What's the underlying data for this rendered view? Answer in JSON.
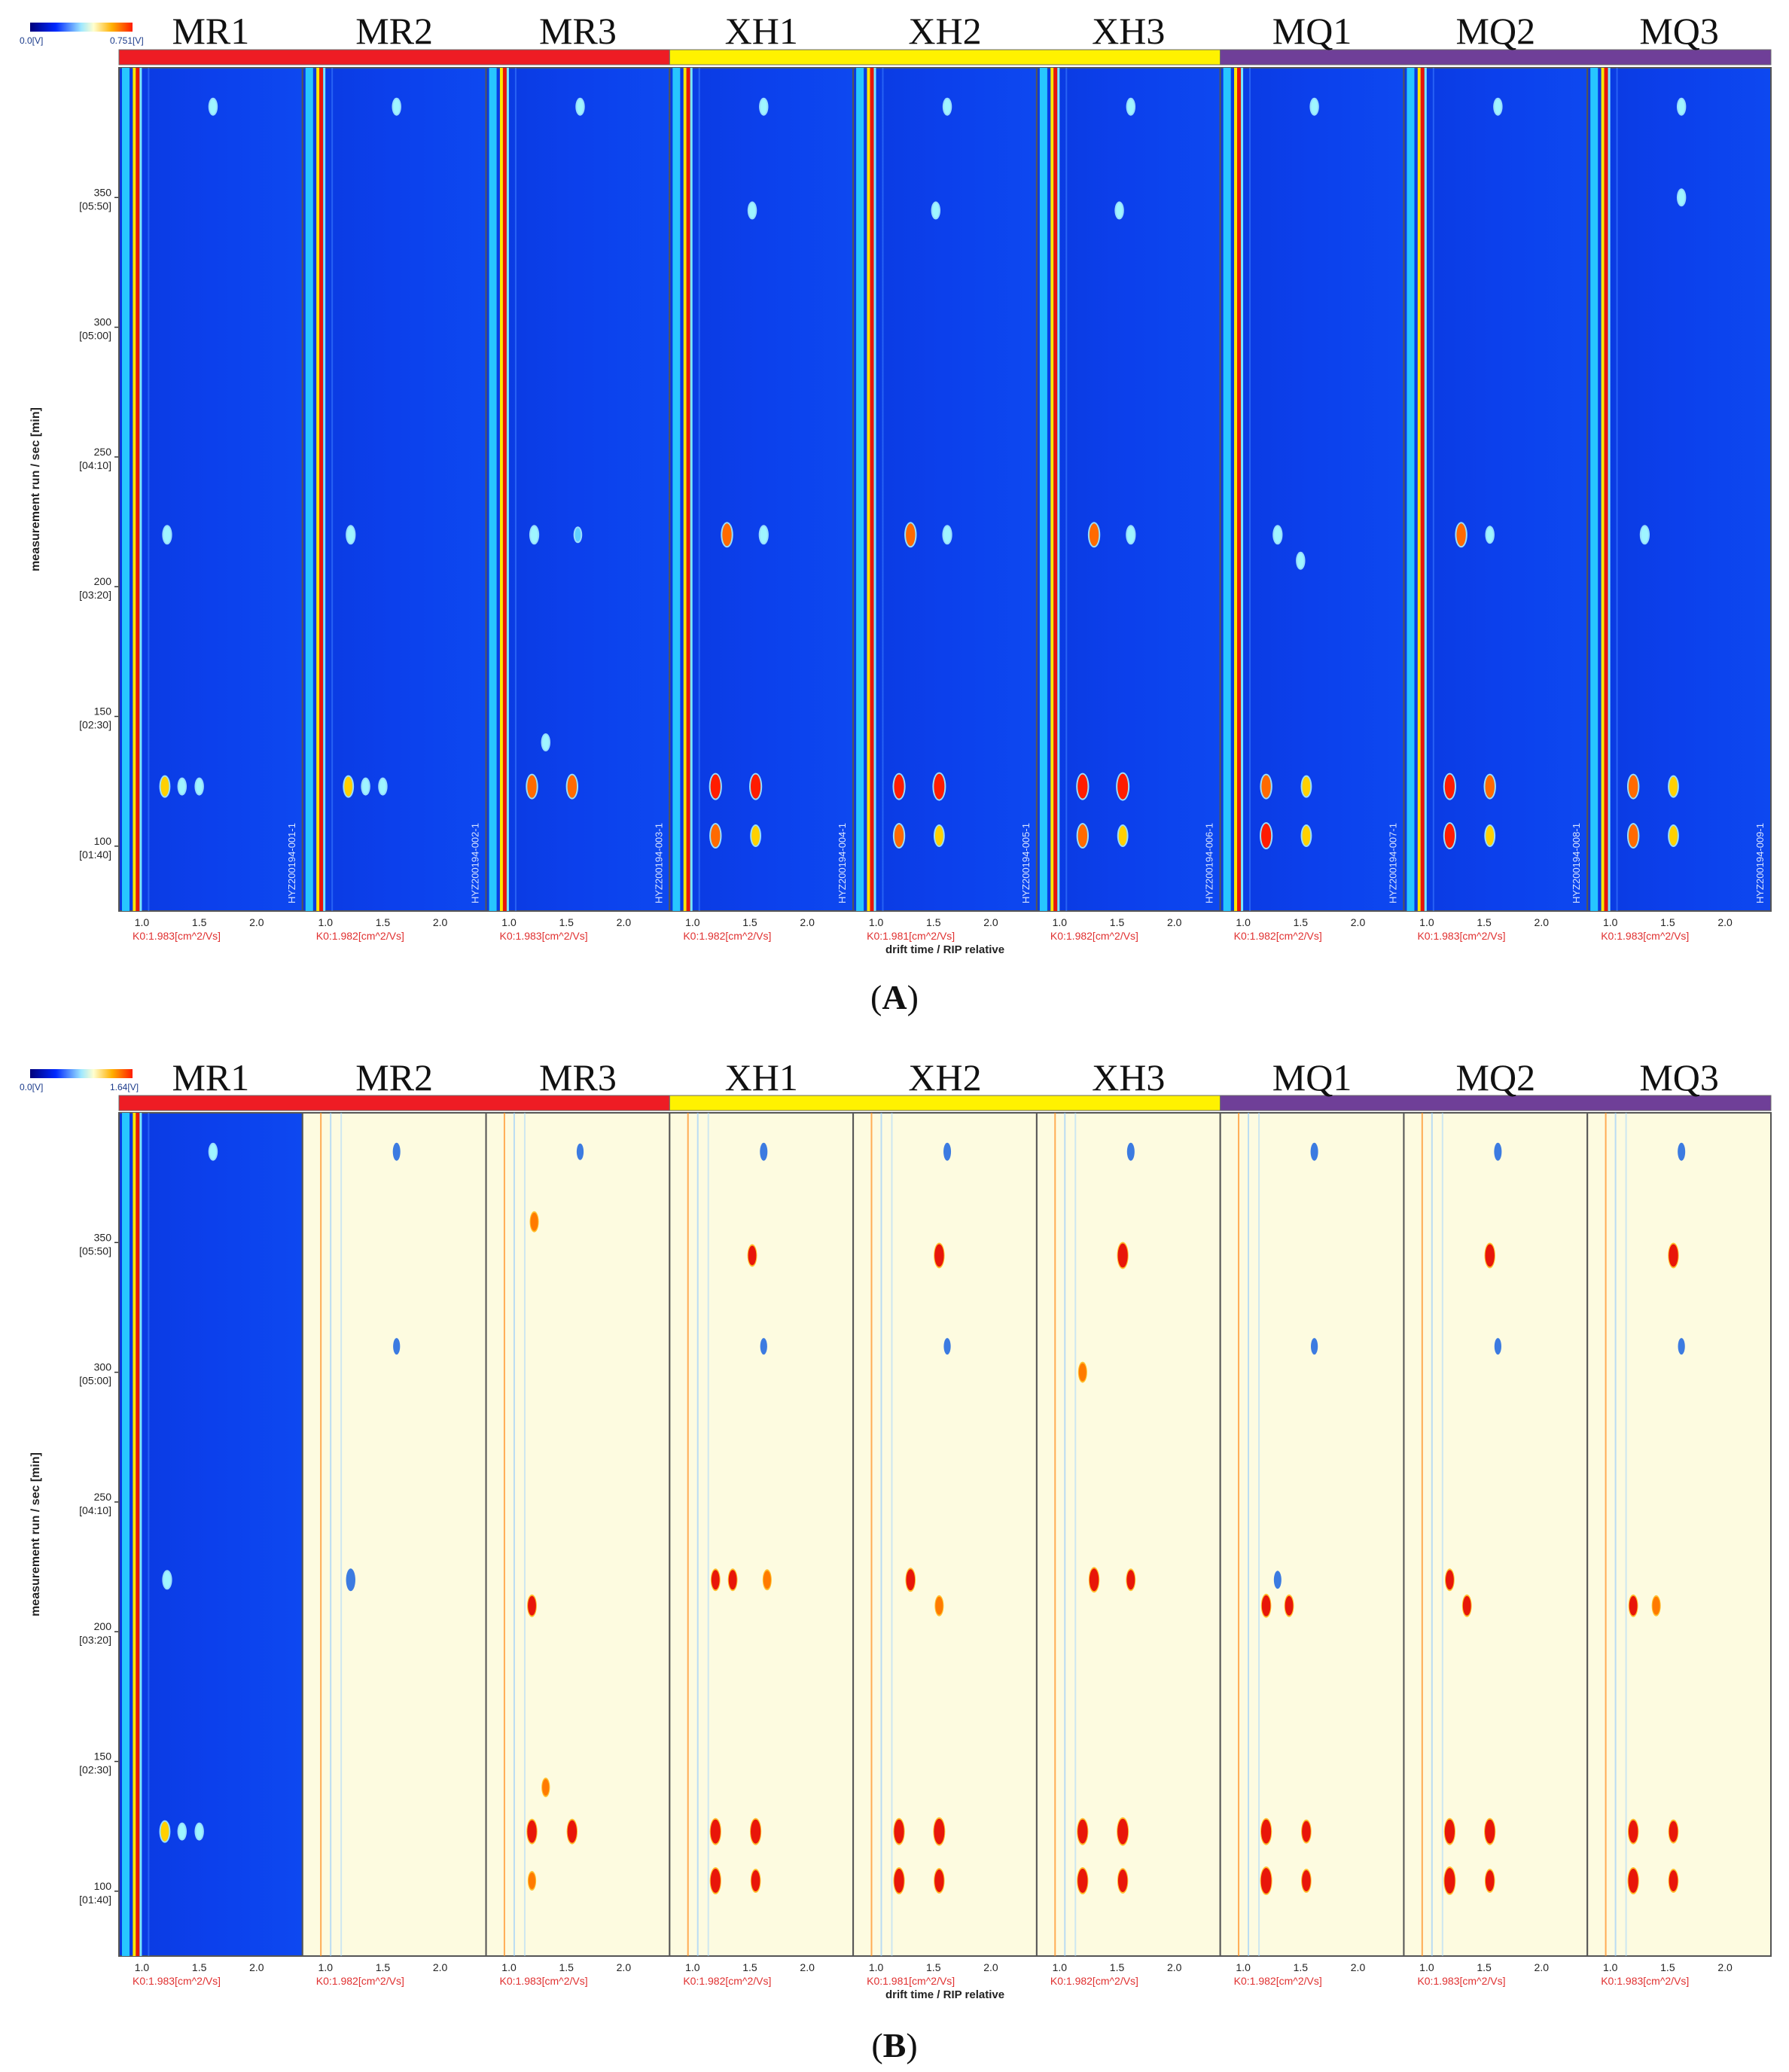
{
  "figure_labels": [
    "A",
    "B"
  ],
  "sample_labels": [
    "MR1",
    "MR2",
    "MR3",
    "XH1",
    "XH2",
    "XH3",
    "MQ1",
    "MQ2",
    "MQ3"
  ],
  "group_colors": [
    "#ee1c24",
    "#fff200",
    "#6f3f98"
  ],
  "panels": [
    {
      "id": "A",
      "colorbar": {
        "min_label": "0.0[V]",
        "max_label": "0.751[V]"
      },
      "y_axis_label": "measurement run / sec [min]",
      "x_axis_label": "drift time / RIP relative",
      "y_ticks": [
        {
          "value": 100,
          "sec": "100",
          "min": "[01:40]"
        },
        {
          "value": 150,
          "sec": "150",
          "min": "[02:30]"
        },
        {
          "value": 200,
          "sec": "200",
          "min": "[03:20]"
        },
        {
          "value": 250,
          "sec": "250",
          "min": "[04:10]"
        },
        {
          "value": 300,
          "sec": "300",
          "min": "[05:00]"
        },
        {
          "value": 350,
          "sec": "350",
          "min": "[05:50]"
        }
      ],
      "x_ticks": [
        "1.0",
        "1.5",
        "2.0"
      ],
      "k0_labels": [
        "K0:1.983[cm^2/Vs]",
        "K0:1.982[cm^2/Vs]",
        "K0:1.983[cm^2/Vs]",
        "K0:1.982[cm^2/Vs]",
        "K0:1.981[cm^2/Vs]",
        "K0:1.982[cm^2/Vs]",
        "K0:1.982[cm^2/Vs]",
        "K0:1.983[cm^2/Vs]",
        "K0:1.983[cm^2/Vs]"
      ],
      "file_labels": [
        "HYZ200194-001-1",
        "HYZ200194-002-1",
        "HYZ200194-003-1",
        "HYZ200194-004-1",
        "HYZ200194-005-1",
        "HYZ200194-006-1",
        "HYZ200194-007-1",
        "HYZ200194-008-1",
        "HYZ200194-009-1"
      ]
    },
    {
      "id": "B",
      "colorbar": {
        "min_label": "0.0[V]",
        "max_label": "1.64[V]"
      },
      "y_axis_label": "measurement run / sec [min]",
      "x_axis_label": "drift time / RIP relative",
      "y_ticks": [
        {
          "value": 100,
          "sec": "100",
          "min": "[01:40]"
        },
        {
          "value": 150,
          "sec": "150",
          "min": "[02:30]"
        },
        {
          "value": 200,
          "sec": "200",
          "min": "[03:20]"
        },
        {
          "value": 250,
          "sec": "250",
          "min": "[04:10]"
        },
        {
          "value": 300,
          "sec": "300",
          "min": "[05:00]"
        },
        {
          "value": 350,
          "sec": "350",
          "min": "[05:50]"
        }
      ],
      "x_ticks": [
        "1.0",
        "1.5",
        "2.0"
      ],
      "k0_labels": [
        "K0:1.983[cm^2/Vs]",
        "K0:1.982[cm^2/Vs]",
        "K0:1.983[cm^2/Vs]",
        "K0:1.982[cm^2/Vs]",
        "K0:1.981[cm^2/Vs]",
        "K0:1.982[cm^2/Vs]",
        "K0:1.982[cm^2/Vs]",
        "K0:1.983[cm^2/Vs]",
        "K0:1.983[cm^2/Vs]"
      ]
    }
  ],
  "chart_data": [
    {
      "type": "heatmap",
      "panel": "A",
      "xlabel": "drift time / RIP relative",
      "ylabel": "measurement run / sec [min]",
      "xlim": [
        0.8,
        2.4
      ],
      "ylim": [
        75,
        400
      ],
      "series": [
        {
          "name": "MR1",
          "peaks": [
            [
              1.2,
              123,
              0.6
            ],
            [
              1.35,
              123,
              0.3
            ],
            [
              1.5,
              123,
              0.3
            ],
            [
              1.22,
              220,
              0.4
            ],
            [
              1.62,
              385,
              0.3
            ]
          ]
        },
        {
          "name": "MR2",
          "peaks": [
            [
              1.2,
              123,
              0.6
            ],
            [
              1.35,
              123,
              0.3
            ],
            [
              1.5,
              123,
              0.3
            ],
            [
              1.22,
              220,
              0.4
            ],
            [
              1.62,
              385,
              0.3
            ]
          ]
        },
        {
          "name": "MR3",
          "peaks": [
            [
              1.2,
              123,
              0.8
            ],
            [
              1.55,
              123,
              0.8
            ],
            [
              1.32,
              140,
              0.3
            ],
            [
              1.22,
              220,
              0.4
            ],
            [
              1.6,
              220,
              0.2
            ],
            [
              1.62,
              385,
              0.3
            ]
          ]
        },
        {
          "name": "XH1",
          "peaks": [
            [
              1.2,
              123,
              0.9
            ],
            [
              1.55,
              123,
              0.9
            ],
            [
              1.2,
              104,
              0.8
            ],
            [
              1.55,
              104,
              0.6
            ],
            [
              1.3,
              220,
              0.8
            ],
            [
              1.62,
              220,
              0.4
            ],
            [
              1.52,
              345,
              0.3
            ],
            [
              1.62,
              385,
              0.3
            ]
          ]
        },
        {
          "name": "XH2",
          "peaks": [
            [
              1.2,
              123,
              0.9
            ],
            [
              1.55,
              123,
              1.0
            ],
            [
              1.2,
              104,
              0.8
            ],
            [
              1.55,
              104,
              0.6
            ],
            [
              1.3,
              220,
              0.8
            ],
            [
              1.62,
              220,
              0.4
            ],
            [
              1.52,
              345,
              0.3
            ],
            [
              1.62,
              385,
              0.3
            ]
          ]
        },
        {
          "name": "XH3",
          "peaks": [
            [
              1.2,
              123,
              0.9
            ],
            [
              1.55,
              123,
              1.0
            ],
            [
              1.2,
              104,
              0.8
            ],
            [
              1.55,
              104,
              0.6
            ],
            [
              1.3,
              220,
              0.8
            ],
            [
              1.62,
              220,
              0.4
            ],
            [
              1.52,
              345,
              0.3
            ],
            [
              1.62,
              385,
              0.3
            ]
          ]
        },
        {
          "name": "MQ1",
          "peaks": [
            [
              1.2,
              123,
              0.8
            ],
            [
              1.55,
              123,
              0.6
            ],
            [
              1.2,
              104,
              0.9
            ],
            [
              1.55,
              104,
              0.6
            ],
            [
              1.3,
              220,
              0.4
            ],
            [
              1.5,
              210,
              0.3
            ],
            [
              1.62,
              385,
              0.3
            ]
          ]
        },
        {
          "name": "MQ2",
          "peaks": [
            [
              1.2,
              123,
              0.9
            ],
            [
              1.55,
              123,
              0.8
            ],
            [
              1.2,
              104,
              0.9
            ],
            [
              1.55,
              104,
              0.6
            ],
            [
              1.3,
              220,
              0.8
            ],
            [
              1.55,
              220,
              0.3
            ],
            [
              1.62,
              385,
              0.3
            ]
          ]
        },
        {
          "name": "MQ3",
          "peaks": [
            [
              1.2,
              123,
              0.8
            ],
            [
              1.55,
              123,
              0.6
            ],
            [
              1.2,
              104,
              0.8
            ],
            [
              1.55,
              104,
              0.6
            ],
            [
              1.3,
              220,
              0.4
            ],
            [
              1.62,
              350,
              0.3
            ],
            [
              1.62,
              385,
              0.3
            ]
          ]
        }
      ]
    },
    {
      "type": "heatmap",
      "panel": "B",
      "xlabel": "drift time / RIP relative",
      "ylabel": "measurement run / sec [min]",
      "xlim": [
        0.8,
        2.4
      ],
      "ylim": [
        75,
        400
      ],
      "reference": "MR1",
      "series": [
        {
          "name": "MR1",
          "peaks": [
            [
              1.2,
              123,
              0.6
            ],
            [
              1.35,
              123,
              0.3
            ],
            [
              1.5,
              123,
              0.3
            ],
            [
              1.22,
              220,
              0.4
            ],
            [
              1.62,
              385,
              0.3
            ]
          ]
        },
        {
          "name": "MR2",
          "peaks": [
            [
              1.22,
              220,
              -0.8
            ],
            [
              1.62,
              385,
              -0.5
            ],
            [
              1.62,
              310,
              -0.4
            ]
          ]
        },
        {
          "name": "MR3",
          "peaks": [
            [
              1.2,
              123,
              0.8
            ],
            [
              1.55,
              123,
              0.8
            ],
            [
              1.32,
              140,
              0.4
            ],
            [
              1.2,
              104,
              0.4
            ],
            [
              1.2,
              210,
              0.6
            ],
            [
              1.22,
              358,
              0.5
            ],
            [
              1.62,
              385,
              -0.4
            ]
          ]
        },
        {
          "name": "XH1",
          "peaks": [
            [
              1.2,
              123,
              0.9
            ],
            [
              1.55,
              123,
              0.9
            ],
            [
              1.2,
              104,
              0.9
            ],
            [
              1.55,
              104,
              0.7
            ],
            [
              1.2,
              220,
              0.6
            ],
            [
              1.35,
              220,
              0.6
            ],
            [
              1.65,
              220,
              0.5
            ],
            [
              1.52,
              345,
              0.6
            ],
            [
              1.62,
              385,
              -0.5
            ],
            [
              1.62,
              310,
              -0.4
            ]
          ]
        },
        {
          "name": "XH2",
          "peaks": [
            [
              1.2,
              123,
              0.9
            ],
            [
              1.55,
              123,
              1.0
            ],
            [
              1.2,
              104,
              0.9
            ],
            [
              1.55,
              104,
              0.8
            ],
            [
              1.3,
              220,
              0.7
            ],
            [
              1.55,
              210,
              0.5
            ],
            [
              1.55,
              345,
              0.8
            ],
            [
              1.62,
              385,
              -0.5
            ],
            [
              1.62,
              310,
              -0.4
            ]
          ]
        },
        {
          "name": "XH3",
          "peaks": [
            [
              1.2,
              123,
              0.9
            ],
            [
              1.55,
              123,
              1.0
            ],
            [
              1.2,
              104,
              0.9
            ],
            [
              1.55,
              104,
              0.8
            ],
            [
              1.3,
              220,
              0.8
            ],
            [
              1.62,
              220,
              0.6
            ],
            [
              1.55,
              345,
              0.9
            ],
            [
              1.2,
              300,
              0.5
            ],
            [
              1.62,
              385,
              -0.5
            ]
          ]
        },
        {
          "name": "MQ1",
          "peaks": [
            [
              1.2,
              123,
              0.9
            ],
            [
              1.55,
              123,
              0.7
            ],
            [
              1.2,
              104,
              1.0
            ],
            [
              1.55,
              104,
              0.7
            ],
            [
              1.2,
              210,
              0.7
            ],
            [
              1.4,
              210,
              0.6
            ],
            [
              1.3,
              220,
              -0.5
            ],
            [
              1.62,
              385,
              -0.5
            ],
            [
              1.62,
              310,
              -0.4
            ]
          ]
        },
        {
          "name": "MQ2",
          "peaks": [
            [
              1.2,
              123,
              0.9
            ],
            [
              1.55,
              123,
              0.9
            ],
            [
              1.2,
              104,
              1.0
            ],
            [
              1.55,
              104,
              0.7
            ],
            [
              1.2,
              220,
              0.6
            ],
            [
              1.35,
              210,
              0.6
            ],
            [
              1.55,
              345,
              0.8
            ],
            [
              1.62,
              385,
              -0.5
            ],
            [
              1.62,
              310,
              -0.4
            ]
          ]
        },
        {
          "name": "MQ3",
          "peaks": [
            [
              1.2,
              123,
              0.8
            ],
            [
              1.55,
              123,
              0.7
            ],
            [
              1.2,
              104,
              0.9
            ],
            [
              1.55,
              104,
              0.7
            ],
            [
              1.2,
              210,
              0.6
            ],
            [
              1.4,
              210,
              0.5
            ],
            [
              1.55,
              345,
              0.8
            ],
            [
              1.62,
              385,
              -0.5
            ],
            [
              1.62,
              310,
              -0.4
            ]
          ]
        }
      ]
    }
  ]
}
